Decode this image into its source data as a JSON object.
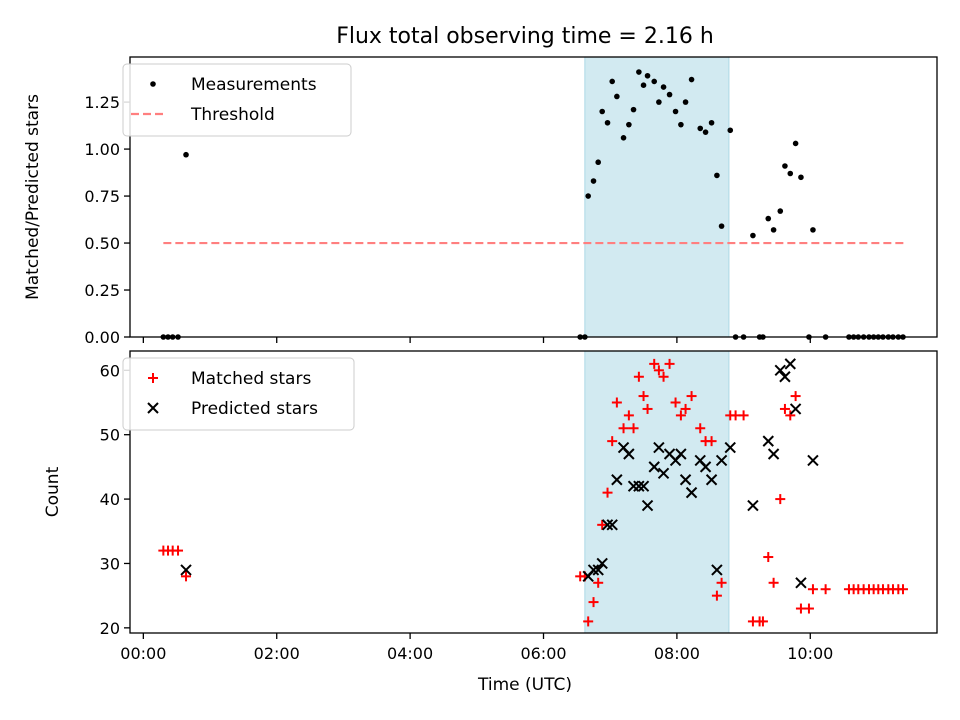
{
  "figure": {
    "title": "Flux total observing time = 2.16 h",
    "xlabel": "Time (UTC)"
  },
  "chart_data": [
    {
      "type": "scatter",
      "panel": "top",
      "ylabel": "Matched/Predicted stars",
      "xlim": [
        "-0.2",
        "11.9"
      ],
      "ylim": [
        0,
        1.49
      ],
      "x_unit": "hours UTC",
      "y_ticks": [
        "0.00",
        "0.25",
        "0.50",
        "0.75",
        "1.00",
        "1.25"
      ],
      "highlight_span": {
        "from": 6.62,
        "to": 8.78,
        "color": "#add8e6"
      },
      "legend": {
        "location": "upper left"
      },
      "threshold": {
        "name": "Threshold",
        "y": 0.5,
        "x_from": 0.3,
        "x_to": 11.4,
        "color": "#ff7f7f",
        "style": "dashed"
      },
      "series": [
        {
          "name": "Measurements",
          "color": "#000000",
          "marker": "dot",
          "points": [
            [
              0.3,
              0
            ],
            [
              0.37,
              0
            ],
            [
              0.44,
              0
            ],
            [
              0.52,
              0
            ],
            [
              0.64,
              0.97
            ],
            [
              6.55,
              0
            ],
            [
              6.62,
              0
            ],
            [
              6.67,
              0.75
            ],
            [
              6.75,
              0.83
            ],
            [
              6.82,
              0.93
            ],
            [
              6.88,
              1.2
            ],
            [
              6.96,
              1.14
            ],
            [
              7.03,
              1.36
            ],
            [
              7.1,
              1.28
            ],
            [
              7.2,
              1.06
            ],
            [
              7.28,
              1.13
            ],
            [
              7.35,
              1.21
            ],
            [
              7.43,
              1.41
            ],
            [
              7.5,
              1.34
            ],
            [
              7.56,
              1.39
            ],
            [
              7.66,
              1.36
            ],
            [
              7.73,
              1.25
            ],
            [
              7.8,
              1.33
            ],
            [
              7.89,
              1.29
            ],
            [
              7.98,
              1.2
            ],
            [
              8.06,
              1.13
            ],
            [
              8.13,
              1.25
            ],
            [
              8.22,
              1.37
            ],
            [
              8.35,
              1.11
            ],
            [
              8.43,
              1.09
            ],
            [
              8.52,
              1.14
            ],
            [
              8.6,
              0.86
            ],
            [
              8.67,
              0.59
            ],
            [
              8.8,
              1.1
            ],
            [
              8.88,
              0
            ],
            [
              9.0,
              0
            ],
            [
              9.14,
              0.54
            ],
            [
              9.24,
              0
            ],
            [
              9.29,
              0
            ],
            [
              9.37,
              0.63
            ],
            [
              9.45,
              0.57
            ],
            [
              9.55,
              0.67
            ],
            [
              9.62,
              0.91
            ],
            [
              9.7,
              0.87
            ],
            [
              9.78,
              1.03
            ],
            [
              9.86,
              0.85
            ],
            [
              9.98,
              0
            ],
            [
              10.04,
              0.57
            ],
            [
              10.23,
              0
            ],
            [
              10.58,
              0
            ],
            [
              10.65,
              0
            ],
            [
              10.72,
              0
            ],
            [
              10.8,
              0
            ],
            [
              10.88,
              0
            ],
            [
              10.95,
              0
            ],
            [
              11.02,
              0
            ],
            [
              11.09,
              0
            ],
            [
              11.17,
              0
            ],
            [
              11.24,
              0
            ],
            [
              11.32,
              0
            ],
            [
              11.39,
              0
            ]
          ]
        }
      ]
    },
    {
      "type": "scatter",
      "panel": "bottom",
      "ylabel": "Count",
      "xlim": [
        "-0.2",
        "11.9"
      ],
      "ylim": [
        19.2,
        63
      ],
      "x_unit": "hours UTC",
      "x_ticks": [
        "00:00",
        "02:00",
        "04:00",
        "06:00",
        "08:00",
        "10:00"
      ],
      "y_ticks": [
        "20",
        "30",
        "40",
        "50",
        "60"
      ],
      "highlight_span": {
        "from": 6.62,
        "to": 8.78,
        "color": "#add8e6"
      },
      "legend": {
        "location": "upper left"
      },
      "series": [
        {
          "name": "Matched stars",
          "color": "#ff0000",
          "marker": "plus",
          "points": [
            [
              0.3,
              32
            ],
            [
              0.37,
              32
            ],
            [
              0.44,
              32
            ],
            [
              0.52,
              32
            ],
            [
              0.64,
              28
            ],
            [
              6.55,
              28
            ],
            [
              6.62,
              28
            ],
            [
              6.67,
              21
            ],
            [
              6.75,
              24
            ],
            [
              6.82,
              27
            ],
            [
              6.88,
              36
            ],
            [
              6.96,
              41
            ],
            [
              7.03,
              49
            ],
            [
              7.1,
              55
            ],
            [
              7.2,
              51
            ],
            [
              7.28,
              53
            ],
            [
              7.35,
              51
            ],
            [
              7.43,
              59
            ],
            [
              7.5,
              56
            ],
            [
              7.56,
              54
            ],
            [
              7.66,
              61
            ],
            [
              7.73,
              60
            ],
            [
              7.8,
              59
            ],
            [
              7.89,
              61
            ],
            [
              7.98,
              55
            ],
            [
              8.06,
              53
            ],
            [
              8.13,
              54
            ],
            [
              8.22,
              56
            ],
            [
              8.35,
              51
            ],
            [
              8.43,
              49
            ],
            [
              8.52,
              49
            ],
            [
              8.6,
              25
            ],
            [
              8.67,
              27
            ],
            [
              8.8,
              53
            ],
            [
              8.88,
              53
            ],
            [
              9.0,
              53
            ],
            [
              9.14,
              21
            ],
            [
              9.24,
              21
            ],
            [
              9.29,
              21
            ],
            [
              9.37,
              31
            ],
            [
              9.45,
              27
            ],
            [
              9.55,
              40
            ],
            [
              9.62,
              54
            ],
            [
              9.7,
              53
            ],
            [
              9.78,
              56
            ],
            [
              9.86,
              23
            ],
            [
              9.98,
              23
            ],
            [
              10.04,
              26
            ],
            [
              10.23,
              26
            ],
            [
              10.58,
              26
            ],
            [
              10.65,
              26
            ],
            [
              10.72,
              26
            ],
            [
              10.8,
              26
            ],
            [
              10.88,
              26
            ],
            [
              10.95,
              26
            ],
            [
              11.02,
              26
            ],
            [
              11.09,
              26
            ],
            [
              11.17,
              26
            ],
            [
              11.24,
              26
            ],
            [
              11.32,
              26
            ],
            [
              11.39,
              26
            ]
          ]
        },
        {
          "name": "Predicted stars",
          "color": "#000000",
          "marker": "x",
          "points": [
            [
              0.64,
              29
            ],
            [
              6.67,
              28
            ],
            [
              6.75,
              29
            ],
            [
              6.82,
              29
            ],
            [
              6.88,
              30
            ],
            [
              6.96,
              36
            ],
            [
              7.03,
              36
            ],
            [
              7.1,
              43
            ],
            [
              7.2,
              48
            ],
            [
              7.28,
              47
            ],
            [
              7.35,
              42
            ],
            [
              7.43,
              42
            ],
            [
              7.5,
              42
            ],
            [
              7.56,
              39
            ],
            [
              7.66,
              45
            ],
            [
              7.73,
              48
            ],
            [
              7.8,
              44
            ],
            [
              7.89,
              47
            ],
            [
              7.98,
              46
            ],
            [
              8.06,
              47
            ],
            [
              8.13,
              43
            ],
            [
              8.22,
              41
            ],
            [
              8.35,
              46
            ],
            [
              8.43,
              45
            ],
            [
              8.52,
              43
            ],
            [
              8.6,
              29
            ],
            [
              8.67,
              46
            ],
            [
              8.8,
              48
            ],
            [
              9.14,
              39
            ],
            [
              9.37,
              49
            ],
            [
              9.45,
              47
            ],
            [
              9.55,
              60
            ],
            [
              9.62,
              59
            ],
            [
              9.7,
              61
            ],
            [
              9.78,
              54
            ],
            [
              9.86,
              27
            ],
            [
              10.04,
              46
            ]
          ]
        }
      ]
    }
  ]
}
